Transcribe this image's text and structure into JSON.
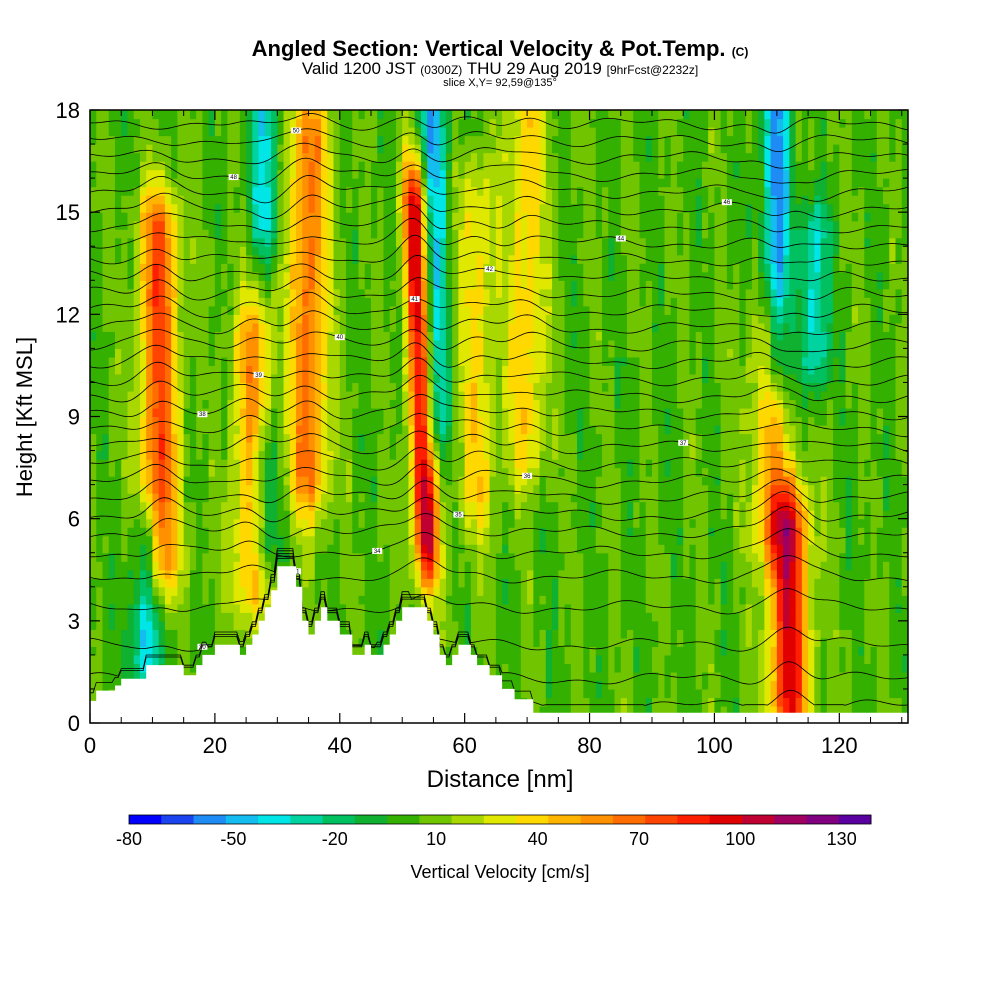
{
  "header": {
    "title": "Angled Section: Vertical Velocity & Pot.Temp.",
    "title_units": "(C)",
    "valid_prefix": "Valid 1200 JST",
    "valid_utc": "(0300Z)",
    "valid_date": "THU 29 Aug 2019",
    "forecast": "[9hrFcst@2232z]",
    "slice": "slice X,Y= 92,59@135°"
  },
  "chart_data": {
    "type": "heatmap",
    "xlabel": "Distance [nm]",
    "ylabel": "Height [Kft MSL]",
    "xlim": [
      0,
      131
    ],
    "ylim": [
      0,
      18
    ],
    "xticks": [
      0,
      20,
      40,
      60,
      80,
      100,
      120
    ],
    "yticks": [
      0,
      3,
      6,
      9,
      12,
      15,
      18
    ],
    "field": "Vertical Velocity [cm/s]",
    "overlay": "Potential Temperature (C) contours",
    "colorbar": {
      "label": "Vertical Velocity [cm/s]",
      "tick_labels": [
        -80,
        -50,
        -20,
        10,
        40,
        70,
        100,
        130
      ],
      "colors": [
        "#0000ff",
        "#1a44f0",
        "#1e8cf4",
        "#14bcf0",
        "#00e6e6",
        "#00d2a0",
        "#00c060",
        "#10b030",
        "#34b000",
        "#70c400",
        "#a8d800",
        "#e0e800",
        "#ffd800",
        "#ffb400",
        "#ff9000",
        "#ff6c00",
        "#ff4400",
        "#ff1e00",
        "#e00000",
        "#c00030",
        "#a00060",
        "#800080",
        "#5a00a0"
      ]
    },
    "updrafts": [
      {
        "x": 11,
        "z_min": 5.2,
        "z_max": 14.2,
        "w_max": 75
      },
      {
        "x": 26,
        "z_min": 4.5,
        "z_max": 11.0,
        "w_max": 55
      },
      {
        "x": 35,
        "z_min": 7.5,
        "z_max": 17.0,
        "w_max": 65
      },
      {
        "x": 53,
        "z_min": 5.5,
        "z_max": 15.0,
        "w_max": 110
      },
      {
        "x": 62,
        "z_min": 7.0,
        "z_max": 15.0,
        "w_max": 35
      },
      {
        "x": 70,
        "z_min": 8.5,
        "z_max": 18.0,
        "w_max": 38
      },
      {
        "x": 109,
        "z_min": 6.0,
        "z_max": 11.0,
        "w_max": 45
      },
      {
        "x": 112,
        "z_min": 0.8,
        "z_max": 5.5,
        "w_max": 95
      }
    ],
    "downdrafts": [
      {
        "x": 9,
        "z_min": 2.0,
        "z_max": 5.0,
        "w_min": -55
      },
      {
        "x": 28,
        "z_min": 5.5,
        "z_max": 7.5,
        "w_min": -45
      },
      {
        "x": 28,
        "z_min": 15.0,
        "z_max": 18.0,
        "w_min": -45
      },
      {
        "x": 55,
        "z_min": 9.0,
        "z_max": 18.0,
        "w_min": -55
      },
      {
        "x": 110,
        "z_min": 11.0,
        "z_max": 18.0,
        "w_min": -60
      },
      {
        "x": 116,
        "z_min": 11.0,
        "z_max": 14.0,
        "w_min": -45
      }
    ],
    "terrain": {
      "x": [
        0,
        1,
        4,
        5,
        9,
        13,
        15,
        17,
        18,
        20,
        22,
        23,
        24,
        25,
        26,
        27,
        28,
        29,
        30,
        31,
        32,
        33,
        34,
        35,
        36,
        37,
        38,
        40,
        42,
        43,
        44,
        45,
        46,
        47,
        48,
        49,
        50,
        51,
        52,
        53,
        54,
        55,
        56,
        57,
        58,
        59,
        60,
        61,
        62,
        64,
        66,
        68,
        71
      ],
      "top": [
        0.65,
        0.95,
        1.1,
        1.3,
        1.7,
        1.7,
        1.4,
        1.7,
        2.0,
        2.3,
        2.3,
        2.3,
        2.0,
        2.3,
        2.6,
        3.0,
        3.4,
        3.9,
        4.6,
        4.6,
        4.6,
        4.0,
        3.0,
        2.6,
        3.0,
        3.4,
        3.0,
        2.6,
        2.0,
        2.0,
        2.3,
        2.0,
        2.0,
        2.3,
        2.6,
        3.0,
        3.4,
        3.4,
        3.4,
        3.4,
        3.0,
        2.6,
        2.0,
        1.7,
        2.0,
        2.3,
        2.3,
        2.0,
        1.7,
        1.4,
        1.0,
        0.7,
        0.3
      ]
    },
    "theta_contours": [
      {
        "z": 0.5,
        "label": "30"
      },
      {
        "z": 1.3,
        "label": ""
      },
      {
        "z": 2.3,
        "label": ""
      },
      {
        "z": 3.4,
        "label": "31"
      },
      {
        "z": 4.3,
        "label": ""
      },
      {
        "z": 5.0,
        "label": "34"
      },
      {
        "z": 5.6,
        "label": ""
      },
      {
        "z": 6.1,
        "label": "35"
      },
      {
        "z": 6.6,
        "label": ""
      },
      {
        "z": 7.1,
        "label": "36"
      },
      {
        "z": 7.6,
        "label": ""
      },
      {
        "z": 8.1,
        "label": "37"
      },
      {
        "z": 8.6,
        "label": ""
      },
      {
        "z": 9.1,
        "label": "38"
      },
      {
        "z": 9.6,
        "label": ""
      },
      {
        "z": 10.1,
        "label": "39"
      },
      {
        "z": 10.6,
        "label": ""
      },
      {
        "z": 11.1,
        "label": "40"
      },
      {
        "z": 11.6,
        "label": ""
      },
      {
        "z": 12.1,
        "label": "41"
      },
      {
        "z": 12.6,
        "label": ""
      },
      {
        "z": 13.1,
        "label": "42"
      },
      {
        "z": 13.6,
        "label": ""
      },
      {
        "z": 14.1,
        "label": "44"
      },
      {
        "z": 14.6,
        "label": ""
      },
      {
        "z": 15.1,
        "label": "46"
      },
      {
        "z": 15.6,
        "label": ""
      },
      {
        "z": 16.1,
        "label": "48"
      },
      {
        "z": 16.6,
        "label": ""
      },
      {
        "z": 17.1,
        "label": "50"
      },
      {
        "z": 17.6,
        "label": ""
      }
    ]
  }
}
